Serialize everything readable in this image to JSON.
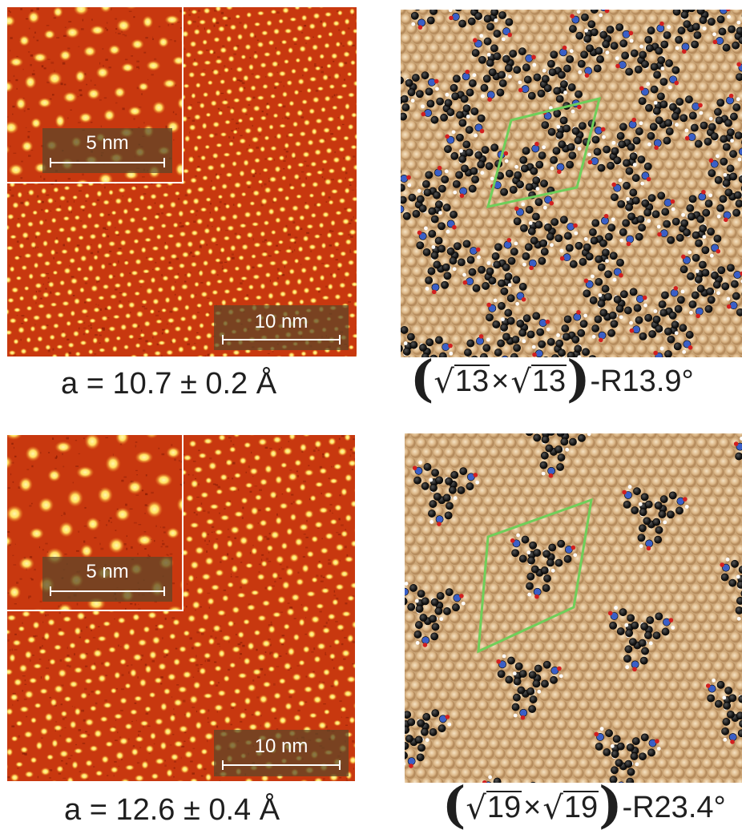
{
  "figure": {
    "colors": {
      "stm_background": "#c8380f",
      "stm_bright": "#ffe060",
      "substrate_atom": "#d9b383",
      "carbon": "#111111",
      "nitrogen": "#3a5fc6",
      "oxygen": "#d21f1f",
      "hydrogen": "#ffffff",
      "unit_cell": "#6fcf5a"
    },
    "rows": [
      {
        "stm": {
          "inset_scale_label": "5 nm",
          "main_scale_label": "10 nm"
        },
        "lattice_caption": "a = 10.7 ± 0.2 Å",
        "superstructure": {
          "radicand_a": "13",
          "times": "×",
          "radicand_b": "13",
          "rotation": "-R13.9°"
        }
      },
      {
        "stm": {
          "inset_scale_label": "5 nm",
          "main_scale_label": "10 nm"
        },
        "lattice_caption": "a = 12.6 ± 0.4 Å",
        "superstructure": {
          "radicand_a": "19",
          "times": "×",
          "radicand_b": "19",
          "rotation": "-R23.4°"
        }
      }
    ]
  }
}
